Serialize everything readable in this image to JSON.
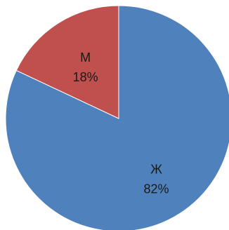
{
  "chart_data": {
    "type": "pie",
    "start_angle_deg": 0,
    "direction": "clockwise",
    "slices": [
      {
        "label": "Ж",
        "value": 82,
        "value_label": "82%",
        "color": "#4F81BD"
      },
      {
        "label": "М",
        "value": 18,
        "value_label": "18%",
        "color": "#C0504D"
      }
    ]
  }
}
